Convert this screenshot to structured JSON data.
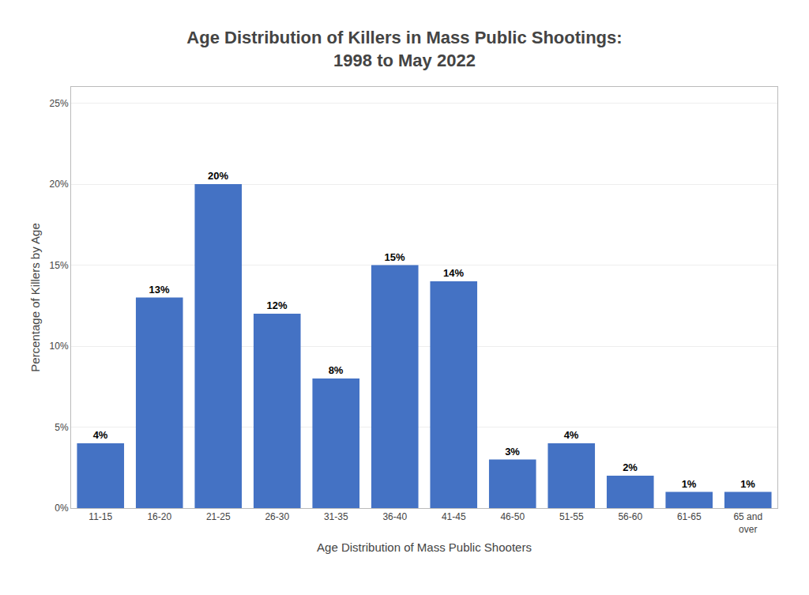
{
  "chart_data": {
    "type": "bar",
    "title": "Age Distribution of Killers in Mass Public Shootings:\n1998 to May 2022",
    "x_label": "Age Distribution of Mass Public Shooters",
    "y_label": "Percentage of Killers by Age",
    "categories": [
      "11-15",
      "16-20",
      "21-25",
      "26-30",
      "31-35",
      "36-40",
      "41-45",
      "46-50",
      "51-55",
      "56-60",
      "61-65",
      "65 and\nover"
    ],
    "values": [
      4,
      13,
      20,
      12,
      8,
      15,
      14,
      3,
      4,
      2,
      1,
      1
    ],
    "value_labels": [
      "4%",
      "13%",
      "20%",
      "12%",
      "8%",
      "15%",
      "14%",
      "3%",
      "4%",
      "2%",
      "1%",
      "1%"
    ],
    "data_labels": true,
    "color": "#4472C4",
    "ylim": [
      0,
      26
    ],
    "yticks": [
      {
        "value": 0,
        "label": "0%"
      },
      {
        "value": 5,
        "label": "5%"
      },
      {
        "value": 10,
        "label": "10%"
      },
      {
        "value": 15,
        "label": "15%"
      },
      {
        "value": 20,
        "label": "20%"
      },
      {
        "value": 25,
        "label": "25%"
      }
    ],
    "grid": true
  }
}
